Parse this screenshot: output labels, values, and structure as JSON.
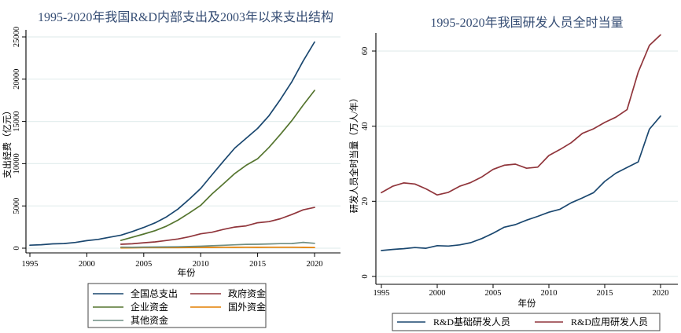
{
  "figure": {
    "background_color": "#ffffff",
    "title_color": "#354d74",
    "grid_color": "#e4eeee",
    "axis_color": "#000000",
    "legend_border_color": "#444444"
  },
  "chart_data": [
    {
      "type": "line",
      "title": "1995-2020年我国R&D内部支出及2003年以来支出结构",
      "xlabel": "年份",
      "ylabel": "支出经费（亿元）",
      "xlim": [
        1994.6,
        2022.8
      ],
      "ylim": [
        0,
        25000
      ],
      "xticks": [
        1995,
        2000,
        2005,
        2010,
        2015,
        2020
      ],
      "yticks": [
        0,
        5000,
        10000,
        15000,
        20000,
        25000
      ],
      "grid": "horizontal",
      "legend_position": "bottom",
      "legend_columns": 2,
      "series": [
        {
          "name": "全国总支出",
          "color": "#1a476f",
          "x_start": 1995,
          "values": [
            348.7,
            404.5,
            509.2,
            551.1,
            678.9,
            895.7,
            1042.5,
            1287.6,
            1539.6,
            1966.3,
            2450.0,
            3003.1,
            3710.2,
            4616.0,
            5802.1,
            7062.6,
            8687.0,
            10298.4,
            11846.6,
            13015.6,
            14169.9,
            15676.7,
            17606.1,
            19677.9,
            22143.6,
            24393.1
          ]
        },
        {
          "name": "政府资金",
          "color": "#90353b",
          "x_start": 2003,
          "values": [
            460.6,
            523.6,
            645.4,
            742.1,
            913.5,
            1088.9,
            1358.3,
            1696.3,
            1883.0,
            2221.4,
            2500.6,
            2636.1,
            3013.2,
            3140.8,
            3487.4,
            3978.6,
            4537.0,
            4826.7
          ]
        },
        {
          "name": "企业资金",
          "color": "#55752f",
          "x_start": 2003,
          "values": [
            920.2,
            1291.5,
            1673.8,
            2073.7,
            2611.0,
            3311.5,
            4162.7,
            5063.1,
            6420.6,
            7625.0,
            8837.7,
            9816.6,
            10588.6,
            11923.5,
            13464.9,
            15079.0,
            16921.8,
            18673.8
          ]
        },
        {
          "name": "国外资金",
          "color": "#e37e00",
          "x_start": 2003,
          "values": [
            39.9,
            48.9,
            64.3,
            66.2,
            68.4,
            68.0,
            72.9,
            90.9,
            96.2,
            110.6,
            105.0,
            108.0,
            100.6,
            107.3,
            110.5,
            108.2,
            95.2,
            77.6
          ]
        },
        {
          "name": "其他资金",
          "color": "#6e8e84",
          "x_start": 2003,
          "values": [
            118.9,
            102.5,
            130.5,
            141.1,
            147.2,
            167.5,
            208.2,
            232.3,
            287.2,
            341.9,
            403.0,
            455.0,
            467.6,
            505.1,
            543.6,
            552.0,
            689.9,
            576.0
          ]
        }
      ]
    },
    {
      "type": "line",
      "title": "1995-2020年我国研发人员全时当量",
      "xlabel": "年份",
      "ylabel": "研发人员全时当量（万人/年）",
      "xlim": [
        1994.5,
        2021.6
      ],
      "ylim": [
        0,
        66
      ],
      "xticks": [
        1995,
        2000,
        2005,
        2010,
        2015,
        2020
      ],
      "yticks": [
        0,
        20,
        40,
        60
      ],
      "grid": "horizontal",
      "legend_position": "bottom",
      "legend_columns": 2,
      "series": [
        {
          "name": "R&D基础研发人员",
          "color": "#1a476f",
          "x_start": 1995,
          "values": [
            6.9,
            7.2,
            7.4,
            7.7,
            7.5,
            8.2,
            8.1,
            8.4,
            9.0,
            10.1,
            11.5,
            13.1,
            13.8,
            15.0,
            16.0,
            17.1,
            17.9,
            19.6,
            20.9,
            22.3,
            25.3,
            27.5,
            29.0,
            30.5,
            39.2,
            42.7
          ]
        },
        {
          "name": "R&D应用研发人员",
          "color": "#90353b",
          "x_start": 1995,
          "values": [
            22.3,
            24.0,
            24.9,
            24.6,
            23.3,
            21.7,
            22.4,
            24.0,
            25.0,
            26.5,
            28.5,
            29.6,
            29.9,
            28.8,
            29.1,
            32.2,
            33.8,
            35.6,
            38.1,
            39.3,
            41.0,
            42.4,
            44.4,
            54.4,
            61.5,
            64.3
          ]
        }
      ]
    }
  ]
}
